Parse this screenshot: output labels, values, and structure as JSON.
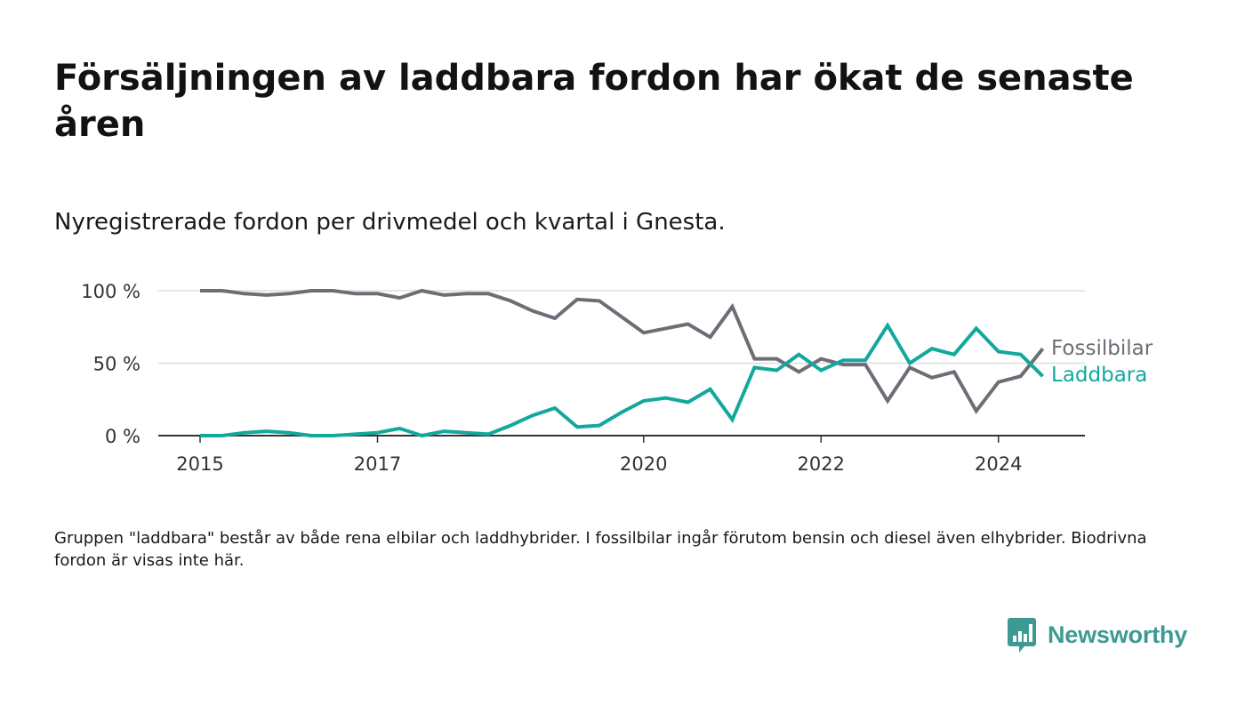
{
  "title": "Försäljningen av laddbara fordon har ökat de senaste åren",
  "subtitle": "Nyregistrerade fordon per drivmedel och kvartal i Gnesta.",
  "note": "Gruppen \"laddbara\" består av både rena elbilar och laddhybrider. I fossilbilar ingår förutom bensin och diesel även elhybrider. Biodrivna fordon är visas inte här.",
  "logo": {
    "text": "Newsworthy",
    "icon": "bar-chart-speech-bubble-icon",
    "color": "#3d9a93"
  },
  "chart_data": {
    "type": "line",
    "title": "",
    "xlabel": "",
    "ylabel": "",
    "x_unit": "year (quarterly)",
    "x": [
      2015.0,
      2015.25,
      2015.5,
      2015.75,
      2016.0,
      2016.25,
      2016.5,
      2016.75,
      2017.0,
      2017.25,
      2017.5,
      2017.75,
      2018.0,
      2018.25,
      2018.5,
      2018.75,
      2019.0,
      2019.25,
      2019.5,
      2019.75,
      2020.0,
      2020.25,
      2020.5,
      2020.75,
      2021.0,
      2021.25,
      2021.5,
      2021.75,
      2022.0,
      2022.25,
      2022.5,
      2022.75,
      2023.0,
      2023.25,
      2023.5,
      2023.75,
      2024.0,
      2024.25,
      2024.5
    ],
    "series": [
      {
        "name": "Fossilbilar",
        "color": "#6e6d76",
        "values": [
          100,
          100,
          98,
          97,
          98,
          100,
          100,
          98,
          98,
          95,
          100,
          97,
          98,
          98,
          93,
          86,
          81,
          94,
          93,
          82,
          71,
          74,
          77,
          68,
          89,
          53,
          53,
          44,
          53,
          49,
          49,
          24,
          47,
          40,
          44,
          17,
          37,
          41,
          60
        ]
      },
      {
        "name": "Laddbara",
        "color": "#13a89e",
        "values": [
          0,
          0,
          2,
          3,
          2,
          0,
          0,
          1,
          2,
          5,
          0,
          3,
          2,
          1,
          7,
          14,
          19,
          6,
          7,
          16,
          24,
          26,
          23,
          32,
          11,
          47,
          45,
          56,
          45,
          52,
          52,
          76,
          50,
          60,
          56,
          74,
          58,
          56,
          41
        ]
      }
    ],
    "ylim": [
      0,
      100
    ],
    "yticks": [
      0,
      50,
      100
    ],
    "ytick_labels": [
      "0 %",
      "50 %",
      "100 %"
    ],
    "xticks": [
      2015,
      2017,
      2020,
      2022,
      2024
    ],
    "xtick_labels": [
      "2015",
      "2017",
      "2020",
      "2022",
      "2024"
    ],
    "grid": "horizontal",
    "legend": "direct labels at line ends, right",
    "gridline_color": "#dddddd",
    "axis_color": "#333333"
  }
}
